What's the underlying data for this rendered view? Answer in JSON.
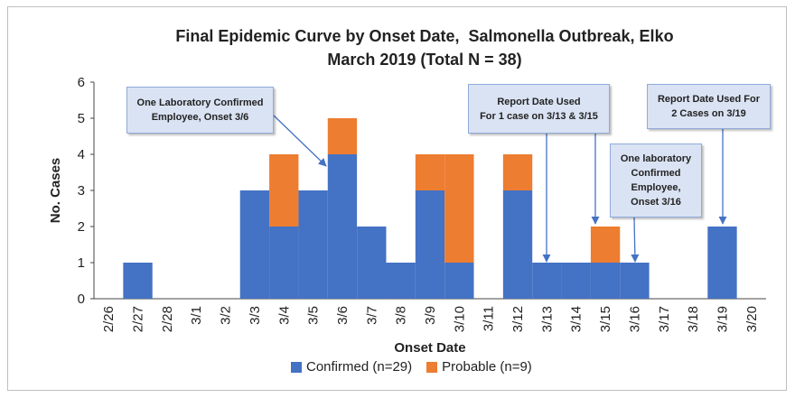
{
  "chart_data": {
    "type": "bar",
    "stacked": true,
    "title_line1": "Final Epidemic Curve by Onset Date,  Salmonella Outbreak, Elko",
    "title_line2": "March 2019 (Total N = 38)",
    "xlabel": "Onset Date",
    "ylabel": "No. Cases",
    "ylim": [
      0,
      6
    ],
    "yticks": [
      "0",
      "1",
      "2",
      "3",
      "4",
      "5",
      "6"
    ],
    "grid": false,
    "legend_position": "bottom",
    "categories": [
      "2/26",
      "2/27",
      "2/28",
      "3/1",
      "3/2",
      "3/3",
      "3/4",
      "3/5",
      "3/6",
      "3/7",
      "3/8",
      "3/9",
      "3/10",
      "3/11",
      "3/12",
      "3/13",
      "3/14",
      "3/15",
      "3/16",
      "3/17",
      "3/18",
      "3/19",
      "3/20"
    ],
    "series": [
      {
        "name": "Confirmed (n=29)",
        "color": "#4472c4",
        "values": [
          0,
          1,
          0,
          0,
          0,
          3,
          2,
          3,
          4,
          2,
          1,
          3,
          1,
          0,
          3,
          1,
          1,
          1,
          1,
          0,
          0,
          2,
          0
        ]
      },
      {
        "name": "Probable  (n=9)",
        "color": "#ed7d31",
        "values": [
          0,
          0,
          0,
          0,
          0,
          0,
          2,
          0,
          1,
          0,
          0,
          1,
          3,
          0,
          1,
          0,
          0,
          1,
          0,
          0,
          0,
          0,
          0
        ]
      }
    ],
    "annotations": [
      {
        "text": "One Laboratory Confirmed\nEmployee, Onset 3/6"
      },
      {
        "text": "Report Date Used\nFor 1 case on 3/13  & 3/15"
      },
      {
        "text": "One laboratory\nConfirmed\nEmployee,\nOnset 3/16"
      },
      {
        "text": "Report Date Used For\n2 Cases on 3/19"
      }
    ]
  }
}
